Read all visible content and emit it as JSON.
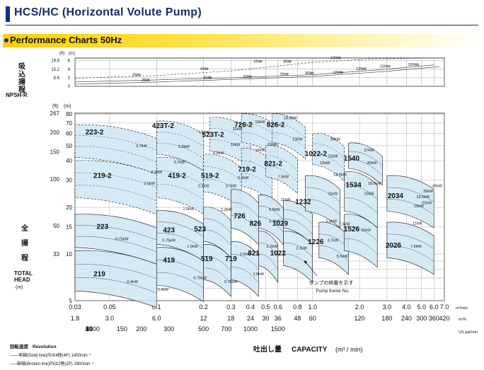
{
  "header": {
    "title": "HCS/HC (Horizontal Volute Pump)",
    "subtitle": "Performance Charts 50Hz"
  },
  "npsh": {
    "label_jp": [
      "吸",
      "込",
      "揚",
      "程"
    ],
    "label_en": "NPSH·R",
    "unit_ft": "(ft)",
    "unit_m": "(m)",
    "ticks_ft": [
      "19.8",
      "13.2",
      "6.6"
    ],
    "ticks_m": [
      "6",
      "4",
      "2",
      "0"
    ],
    "pipe_labels": [
      {
        "t": "25㎜",
        "x": 0.07,
        "y": 2.2
      },
      {
        "t": "25㎜",
        "x": 0.08,
        "y": 1.0
      },
      {
        "t": "40㎜",
        "x": 0.19,
        "y": 3.6
      },
      {
        "t": "40㎜",
        "x": 0.2,
        "y": 1.6
      },
      {
        "t": "50㎜",
        "x": 0.36,
        "y": 1.8
      },
      {
        "t": "65㎜",
        "x": 0.42,
        "y": 5.4
      },
      {
        "t": "65㎜",
        "x": 0.62,
        "y": 2.4
      },
      {
        "t": "80㎜",
        "x": 0.65,
        "y": 5.4
      },
      {
        "t": "80㎜",
        "x": 0.9,
        "y": 2.6
      },
      {
        "t": "100㎜",
        "x": 1.3,
        "y": 6.2
      },
      {
        "t": "100㎜",
        "x": 1.35,
        "y": 2.8
      },
      {
        "t": "125㎜",
        "x": 1.9,
        "y": 3.6
      },
      {
        "t": "150㎜",
        "x": 2.7,
        "y": 4.2
      },
      {
        "t": "200㎜",
        "x": 4.1,
        "y": 4.6
      }
    ]
  },
  "head_axis": {
    "unit_ft": "(ft)",
    "unit_m": "(m)",
    "label_jp": [
      "全",
      "揚",
      "程"
    ],
    "label_en1": "TOTAL",
    "label_en2": "HEAD",
    "label_en3": "(m)",
    "ticks_ft": [
      {
        "t": "267",
        "m": 81
      },
      {
        "t": "200",
        "m": 61
      },
      {
        "t": "150",
        "m": 45.7
      },
      {
        "t": "100",
        "m": 30.5
      },
      {
        "t": "50",
        "m": 15.2
      },
      {
        "t": "33",
        "m": 10
      }
    ],
    "ticks_m": [
      {
        "t": "80",
        "m": 80
      },
      {
        "t": "70",
        "m": 70
      },
      {
        "t": "60",
        "m": 60
      },
      {
        "t": "50",
        "m": 50
      },
      {
        "t": "40",
        "m": 40
      },
      {
        "t": "30",
        "m": 30
      },
      {
        "t": "20",
        "m": 20
      },
      {
        "t": "15",
        "m": 15
      },
      {
        "t": "10",
        "m": 10
      },
      {
        "t": "5",
        "m": 5
      }
    ]
  },
  "x_axis": {
    "ticks_m3min": [
      {
        "t": "0.03",
        "q": 0.03
      },
      {
        "t": "0.05",
        "q": 0.05
      },
      {
        "t": "0.1",
        "q": 0.1
      },
      {
        "t": "0.2",
        "q": 0.2
      },
      {
        "t": "0.3",
        "q": 0.3
      },
      {
        "t": "0.4",
        "q": 0.4
      },
      {
        "t": "0.5",
        "q": 0.5
      },
      {
        "t": "0.6",
        "q": 0.6
      },
      {
        "t": "0.8",
        "q": 0.8
      },
      {
        "t": "1.0",
        "q": 1.0
      },
      {
        "t": "2.0",
        "q": 2.0
      },
      {
        "t": "3.0",
        "q": 3.0
      },
      {
        "t": "4.0",
        "q": 4.0
      },
      {
        "t": "5.0",
        "q": 5.0
      },
      {
        "t": "6.0",
        "q": 6.0
      },
      {
        "t": "7.0",
        "q": 7.0
      }
    ],
    "unit_m3min": "m³/min",
    "ticks_m3h": [
      {
        "t": "1.8",
        "q": 0.03
      },
      {
        "t": "3.0",
        "q": 0.05
      },
      {
        "t": "6.0",
        "q": 0.1
      },
      {
        "t": "12",
        "q": 0.2
      },
      {
        "t": "18",
        "q": 0.3
      },
      {
        "t": "24",
        "q": 0.4
      },
      {
        "t": "30",
        "q": 0.5
      },
      {
        "t": "36",
        "q": 0.6
      },
      {
        "t": "48",
        "q": 0.8
      },
      {
        "t": "60",
        "q": 1.0
      },
      {
        "t": "120",
        "q": 2.0
      },
      {
        "t": "180",
        "q": 3.0
      },
      {
        "t": "240",
        "q": 4.0
      },
      {
        "t": "300",
        "q": 5.0
      },
      {
        "t": "360",
        "q": 6.0
      },
      {
        "t": "420",
        "q": 7.0
      }
    ],
    "unit_m3h": "m³/h",
    "ticks_lmin": [
      {
        "t": "10",
        "q": 0.01
      },
      {
        "t": "20",
        "q": 0.02
      },
      {
        "t": "30",
        "q": 0.03
      },
      {
        "t": "40",
        "q": 0.04
      },
      {
        "t": "50",
        "q": 0.05
      },
      {
        "t": "100",
        "q": 0.1
      },
      {
        "t": "150",
        "q": 0.15
      },
      {
        "t": "200",
        "q": 0.2
      },
      {
        "t": "300",
        "q": 0.3
      },
      {
        "t": "500",
        "q": 0.5
      },
      {
        "t": "700",
        "q": 0.7
      },
      {
        "t": "1000",
        "q": 1.0
      },
      {
        "t": "1500",
        "q": 1.5
      }
    ],
    "unit_lmin": "US gal/min",
    "label_jp": "吐出し量",
    "label_en": "CAPACITY",
    "label_unit": "(m³ / min)"
  },
  "legend": {
    "revolution_jp": "回転速度",
    "revolution_en": "Revolution",
    "solid": "——実線(Solid line)内は4極(4P) 1450min⁻¹",
    "broken": "-----破線(Broken line)内は2極(2P) 2900min⁻¹"
  },
  "annotation": {
    "jp": "ポンプの枠番を示す",
    "en": "Pump frame No."
  },
  "colors": {
    "fill": "#cfe6f3",
    "stroke": "#111111",
    "title": "#1a2a6c"
  },
  "chart_data": {
    "type": "area",
    "title": "Performance Charts 50Hz",
    "xlabel": "吐出し量 CAPACITY (m³ / min)",
    "ylabel": "全揚程 TOTAL HEAD (m)",
    "x_scale": "log",
    "y_scale": "log",
    "xlim": [
      0.03,
      7.0
    ],
    "ylim": [
      5,
      81
    ],
    "grid": true,
    "pump_regions": [
      {
        "name": "219",
        "q1": 0.03,
        "q2": 0.1,
        "h1": 5.5,
        "h2": 10.5,
        "line": "solid"
      },
      {
        "name": "223",
        "q1": 0.03,
        "q2": 0.1,
        "h1": 10.5,
        "h2": 18,
        "line": "solid"
      },
      {
        "name": "219-2",
        "q1": 0.03,
        "q2": 0.1,
        "h1": 22,
        "h2": 40,
        "line": "broken"
      },
      {
        "name": "223-2",
        "q1": 0.03,
        "q2": 0.1,
        "h1": 40,
        "h2": 68,
        "line": "broken"
      },
      {
        "name": "419",
        "q1": 0.1,
        "q2": 0.2,
        "h1": 6,
        "h2": 11,
        "line": "solid"
      },
      {
        "name": "423",
        "q1": 0.1,
        "q2": 0.2,
        "h1": 11,
        "h2": 19,
        "line": "solid"
      },
      {
        "name": "419-2",
        "q1": 0.1,
        "q2": 0.2,
        "h1": 22,
        "h2": 42,
        "line": "broken"
      },
      {
        "name": "423T-2",
        "q1": 0.1,
        "q2": 0.2,
        "h1": 42,
        "h2": 72,
        "line": "broken"
      },
      {
        "name": "519",
        "q1": 0.2,
        "q2": 0.3,
        "h1": 6.5,
        "h2": 11.5,
        "line": "solid"
      },
      {
        "name": "523",
        "q1": 0.2,
        "q2": 0.3,
        "h1": 11.5,
        "h2": 20,
        "line": "solid"
      },
      {
        "name": "519-2",
        "q1": 0.2,
        "q2": 0.35,
        "h1": 24,
        "h2": 44,
        "line": "broken"
      },
      {
        "name": "523T-2",
        "q1": 0.22,
        "q2": 0.4,
        "h1": 44,
        "h2": 76,
        "line": "broken"
      },
      {
        "name": "719",
        "q1": 0.3,
        "q2": 0.45,
        "h1": 6.5,
        "h2": 12,
        "line": "solid"
      },
      {
        "name": "726",
        "q1": 0.3,
        "q2": 0.45,
        "h1": 14,
        "h2": 26,
        "line": "solid"
      },
      {
        "name": "719-2",
        "q1": 0.35,
        "q2": 0.55,
        "h1": 26,
        "h2": 48,
        "line": "broken"
      },
      {
        "name": "726-2",
        "q1": 0.35,
        "q2": 0.6,
        "h1": 50,
        "h2": 80,
        "line": "broken"
      },
      {
        "name": "821",
        "q1": 0.45,
        "q2": 0.6,
        "h1": 8,
        "h2": 14,
        "line": "solid"
      },
      {
        "name": "826",
        "q1": 0.45,
        "q2": 0.65,
        "h1": 14,
        "h2": 24,
        "line": "solid"
      },
      {
        "name": "821-2",
        "q1": 0.5,
        "q2": 0.8,
        "h1": 30,
        "h2": 50,
        "line": "broken"
      },
      {
        "name": "826-2",
        "q1": 0.55,
        "q2": 0.9,
        "h1": 50,
        "h2": 80,
        "line": "broken"
      },
      {
        "name": "1022",
        "q1": 0.65,
        "q2": 1.0,
        "h1": 8,
        "h2": 14,
        "line": "solid"
      },
      {
        "name": "1029",
        "q1": 0.65,
        "q2": 1.0,
        "h1": 14,
        "h2": 22,
        "line": "solid"
      },
      {
        "name": "1232",
        "q1": 0.9,
        "q2": 1.5,
        "h1": 18,
        "h2": 32,
        "line": "solid"
      },
      {
        "name": "1022-2",
        "q1": 1.0,
        "q2": 1.6,
        "h1": 36,
        "h2": 60,
        "line": "broken"
      },
      {
        "name": "1226",
        "q1": 1.1,
        "q2": 1.7,
        "h1": 9,
        "h2": 16,
        "line": "solid"
      },
      {
        "name": "1526",
        "q1": 1.6,
        "q2": 2.6,
        "h1": 10,
        "h2": 18,
        "line": "solid"
      },
      {
        "name": "1534",
        "q1": 1.6,
        "q2": 2.6,
        "h1": 18,
        "h2": 34,
        "line": "solid"
      },
      {
        "name": "1540",
        "q1": 1.7,
        "q2": 2.8,
        "h1": 34,
        "h2": 52,
        "line": "solid"
      },
      {
        "name": "2026",
        "q1": 3.0,
        "q2": 6.0,
        "h1": 9,
        "h2": 16,
        "line": "solid"
      },
      {
        "name": "2034",
        "q1": 3.0,
        "q2": 6.0,
        "h1": 18,
        "h2": 32,
        "line": "solid"
      }
    ],
    "region_labels": [
      {
        "t": "219",
        "q": 0.043,
        "h": 7.2
      },
      {
        "t": "223",
        "q": 0.045,
        "h": 14.5
      },
      {
        "t": "219-2",
        "q": 0.045,
        "h": 31
      },
      {
        "t": "223-2",
        "q": 0.04,
        "h": 59
      },
      {
        "t": "419",
        "q": 0.12,
        "h": 8.8
      },
      {
        "t": "423",
        "q": 0.12,
        "h": 13.8
      },
      {
        "t": "419-2",
        "q": 0.135,
        "h": 31
      },
      {
        "t": "423T-2",
        "q": 0.11,
        "h": 65
      },
      {
        "t": "519",
        "q": 0.21,
        "h": 9
      },
      {
        "t": "523",
        "q": 0.19,
        "h": 14
      },
      {
        "t": "519-2",
        "q": 0.22,
        "h": 31
      },
      {
        "t": "523T-2",
        "q": 0.23,
        "h": 57
      },
      {
        "t": "719",
        "q": 0.3,
        "h": 9
      },
      {
        "t": "726",
        "q": 0.34,
        "h": 17
      },
      {
        "t": "719-2",
        "q": 0.38,
        "h": 34
      },
      {
        "t": "726-2",
        "q": 0.36,
        "h": 66
      },
      {
        "t": "821",
        "q": 0.42,
        "h": 9.8
      },
      {
        "t": "826",
        "q": 0.43,
        "h": 15.2
      },
      {
        "t": "821-2",
        "q": 0.56,
        "h": 37
      },
      {
        "t": "826-2",
        "q": 0.58,
        "h": 66
      },
      {
        "t": "1022",
        "q": 0.6,
        "h": 9.8
      },
      {
        "t": "1029",
        "q": 0.62,
        "h": 15.2
      },
      {
        "t": "1232",
        "q": 0.87,
        "h": 21
      },
      {
        "t": "1022-2",
        "q": 1.05,
        "h": 43
      },
      {
        "t": "1226",
        "q": 1.05,
        "h": 11.6
      },
      {
        "t": "1540",
        "q": 1.78,
        "h": 40
      },
      {
        "t": "1534",
        "q": 1.83,
        "h": 27
      },
      {
        "t": "1526",
        "q": 1.78,
        "h": 14
      },
      {
        "t": "2034",
        "q": 3.4,
        "h": 23
      },
      {
        "t": "2026",
        "q": 3.3,
        "h": 11
      }
    ],
    "motor_labels": [
      {
        "t": "0.4kW",
        "q": 0.07,
        "h": 6.5
      },
      {
        "t": "0.4kW",
        "q": 0.11,
        "h": 5.8
      },
      {
        "t": "0.75kW",
        "q": 0.06,
        "h": 12.3
      },
      {
        "t": "0.75kW",
        "q": 0.12,
        "h": 12
      },
      {
        "t": "0.75kW",
        "q": 0.19,
        "h": 6.9
      },
      {
        "t": "0.75kW",
        "q": 0.3,
        "h": 6.5
      },
      {
        "t": "1.5kW",
        "q": 0.17,
        "h": 11
      },
      {
        "t": "1.5kW",
        "q": 0.37,
        "h": 9.8
      },
      {
        "t": "1.5kW",
        "q": 0.45,
        "h": 7.3
      },
      {
        "t": "1.5kW",
        "q": 0.16,
        "h": 19.2
      },
      {
        "t": "1.5kW",
        "q": 0.09,
        "h": 28
      },
      {
        "t": "2.2kW",
        "q": 0.1,
        "h": 33.2
      },
      {
        "t": "2.2kW",
        "q": 0.2,
        "h": 27
      },
      {
        "t": "2.2kW",
        "q": 0.28,
        "h": 19
      },
      {
        "t": "2.2kW",
        "q": 0.55,
        "h": 11
      },
      {
        "t": "2.2kW",
        "q": 0.85,
        "h": 10.7
      },
      {
        "t": "3.7kW",
        "q": 0.08,
        "h": 49
      },
      {
        "t": "3.7kW",
        "q": 0.14,
        "h": 38.5
      },
      {
        "t": "3.7kW",
        "q": 0.3,
        "h": 27
      },
      {
        "t": "3.7kW",
        "q": 0.57,
        "h": 16
      },
      {
        "t": "3.7kW",
        "q": 1.35,
        "h": 12
      },
      {
        "t": "5.5kW",
        "q": 0.15,
        "h": 48.5
      },
      {
        "t": "5.5kW",
        "q": 0.25,
        "h": 44
      },
      {
        "t": "5.5kW",
        "q": 0.36,
        "h": 30.5
      },
      {
        "t": "5.5kW",
        "q": 0.57,
        "h": 19
      },
      {
        "t": "5.5kW",
        "q": 1.32,
        "h": 16
      },
      {
        "t": "5.5kW",
        "q": 1.55,
        "h": 9.5
      },
      {
        "t": "7.5kW",
        "q": 0.2,
        "h": 60
      },
      {
        "t": "7.5kW",
        "q": 0.65,
        "h": 31
      },
      {
        "t": "7.5kW",
        "q": 1.6,
        "h": 15.3
      },
      {
        "t": "7.5kW",
        "q": 4.6,
        "h": 11
      },
      {
        "t": "11kW",
        "q": 0.33,
        "h": 63
      },
      {
        "t": "11kW",
        "q": 0.32,
        "h": 50
      },
      {
        "t": "11kW",
        "q": 0.55,
        "h": 50
      },
      {
        "t": "11kW",
        "q": 0.67,
        "h": 22
      },
      {
        "t": "11kW",
        "q": 1.35,
        "h": 24
      },
      {
        "t": "11kW",
        "q": 2.2,
        "h": 14
      },
      {
        "t": "11kW",
        "q": 4.7,
        "h": 15.5
      },
      {
        "t": "15kW",
        "q": 0.46,
        "h": 70
      },
      {
        "t": "15kW",
        "q": 0.46,
        "h": 46
      },
      {
        "t": "15kW",
        "q": 1.2,
        "h": 38
      },
      {
        "t": "15kW",
        "q": 2.3,
        "h": 24
      },
      {
        "t": "15kW",
        "q": 4.8,
        "h": 20
      },
      {
        "t": "18.5kW",
        "q": 0.72,
        "h": 74
      },
      {
        "t": "18.5kW",
        "q": 1.5,
        "h": 32
      },
      {
        "t": "18.5kW",
        "q": 2.5,
        "h": 28
      },
      {
        "t": "18.5kW",
        "q": 5.1,
        "h": 23
      },
      {
        "t": "22kW",
        "q": 0.8,
        "h": 54
      },
      {
        "t": "22kW",
        "q": 1.35,
        "h": 42
      },
      {
        "t": "22kW",
        "q": 5.4,
        "h": 21
      },
      {
        "t": "30kW",
        "q": 1.4,
        "h": 54
      },
      {
        "t": "30kW",
        "q": 2.4,
        "h": 38
      },
      {
        "t": "30kW",
        "q": 5.5,
        "h": 25
      },
      {
        "t": "37kW",
        "q": 2.3,
        "h": 46
      },
      {
        "t": "45kW",
        "q": 6.3,
        "h": 27
      }
    ]
  }
}
